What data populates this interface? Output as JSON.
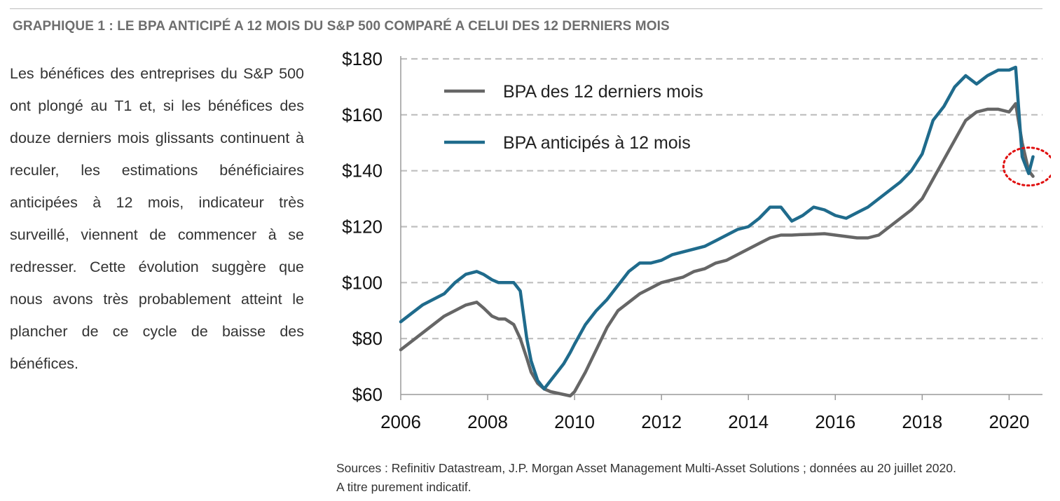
{
  "figure": {
    "title": "GRAPHIQUE 1 : LE BPA ANTICIPÉ A 12 MOIS DU S&P 500 COMPARÉ A CELUI DES 12 DERNIERS MOIS",
    "commentary": "Les bénéfices des entreprises du S&P 500 ont plongé au T1 et, si les bénéfices des douze derniers mois glissants continuent à reculer, les estimations bénéficiaires anticipées à 12 mois, indicateur très surveillé, viennent de commencer à se redresser. Cette évolution suggère que nous avons très probablement atteint le plancher de ce cycle de baisse des bénéfices.",
    "source_line1": "Sources : Refinitiv Datastream, J.P. Morgan Asset Management Multi-Asset Solutions ; données au 20 juillet 2020.",
    "source_line2": "A titre purement indicatif."
  },
  "chart_data": {
    "type": "line",
    "title": "",
    "xlabel": "",
    "ylabel": "",
    "xlim": [
      2006,
      2020.8
    ],
    "ylim": [
      60,
      180
    ],
    "x_ticks": [
      2006,
      2008,
      2010,
      2012,
      2014,
      2016,
      2018,
      2020
    ],
    "x_tick_labels": [
      "2006",
      "2008",
      "2010",
      "2012",
      "2014",
      "2016",
      "2018",
      "2020"
    ],
    "y_ticks": [
      60,
      80,
      100,
      120,
      140,
      160,
      180
    ],
    "y_tick_labels": [
      "$60",
      "$80",
      "$100",
      "$120",
      "$140",
      "$160",
      "$180"
    ],
    "grid": "horizontal dashed",
    "legend_position": "top-left",
    "annotation": "dotted red circle around mid-2020 values",
    "series": [
      {
        "name": "BPA des 12 derniers mois",
        "color": "#666666",
        "x": [
          2006.0,
          2006.25,
          2006.5,
          2006.75,
          2007.0,
          2007.25,
          2007.5,
          2007.75,
          2007.9,
          2008.1,
          2008.25,
          2008.4,
          2008.6,
          2008.75,
          2008.9,
          2009.0,
          2009.15,
          2009.3,
          2009.45,
          2009.6,
          2009.75,
          2009.9,
          2010.0,
          2010.25,
          2010.5,
          2010.75,
          2011.0,
          2011.25,
          2011.5,
          2011.75,
          2012.0,
          2012.25,
          2012.5,
          2012.75,
          2013.0,
          2013.25,
          2013.5,
          2013.75,
          2014.0,
          2014.25,
          2014.5,
          2014.75,
          2015.0,
          2015.25,
          2015.5,
          2015.75,
          2016.0,
          2016.25,
          2016.5,
          2016.75,
          2017.0,
          2017.25,
          2017.5,
          2017.75,
          2018.0,
          2018.25,
          2018.5,
          2018.75,
          2019.0,
          2019.25,
          2019.5,
          2019.75,
          2020.0,
          2020.15,
          2020.3,
          2020.45,
          2020.55
        ],
        "values": [
          76,
          79,
          82,
          85,
          88,
          90,
          92,
          93,
          91,
          88,
          87,
          87,
          85,
          80,
          73,
          68,
          64,
          62,
          61,
          60.5,
          60,
          59.5,
          61,
          68,
          76,
          84,
          90,
          93,
          96,
          98,
          100,
          101,
          102,
          104,
          105,
          107,
          108,
          110,
          112,
          114,
          116,
          117,
          117,
          117.2,
          117.3,
          117.5,
          117,
          116.5,
          116,
          116,
          117,
          120,
          123,
          126,
          130,
          137,
          144,
          151,
          158,
          161,
          162,
          162,
          161,
          164,
          150,
          140,
          138
        ]
      },
      {
        "name": "BPA anticipés à 12 mois",
        "color": "#1f6b8c",
        "x": [
          2006.0,
          2006.25,
          2006.5,
          2006.75,
          2007.0,
          2007.25,
          2007.5,
          2007.75,
          2007.9,
          2008.1,
          2008.25,
          2008.4,
          2008.6,
          2008.75,
          2008.9,
          2009.0,
          2009.15,
          2009.3,
          2009.45,
          2009.6,
          2009.75,
          2009.9,
          2010.0,
          2010.25,
          2010.5,
          2010.75,
          2011.0,
          2011.25,
          2011.5,
          2011.75,
          2012.0,
          2012.25,
          2012.5,
          2012.75,
          2013.0,
          2013.25,
          2013.5,
          2013.75,
          2014.0,
          2014.25,
          2014.5,
          2014.75,
          2015.0,
          2015.25,
          2015.5,
          2015.75,
          2016.0,
          2016.25,
          2016.5,
          2016.75,
          2017.0,
          2017.25,
          2017.5,
          2017.75,
          2018.0,
          2018.25,
          2018.5,
          2018.75,
          2019.0,
          2019.25,
          2019.5,
          2019.75,
          2020.0,
          2020.15,
          2020.3,
          2020.45,
          2020.55
        ],
        "values": [
          86,
          89,
          92,
          94,
          96,
          100,
          103,
          104,
          103,
          101,
          100,
          100,
          100,
          97,
          80,
          72,
          65,
          62,
          65,
          68,
          71,
          75,
          78,
          85,
          90,
          94,
          99,
          104,
          107,
          107,
          108,
          110,
          111,
          112,
          113,
          115,
          117,
          119,
          120,
          123,
          127,
          127,
          122,
          124,
          127,
          126,
          124,
          123,
          125,
          127,
          130,
          133,
          136,
          140,
          146,
          158,
          163,
          170,
          174,
          171,
          174,
          176,
          176,
          177,
          145,
          139,
          145
        ]
      }
    ]
  }
}
